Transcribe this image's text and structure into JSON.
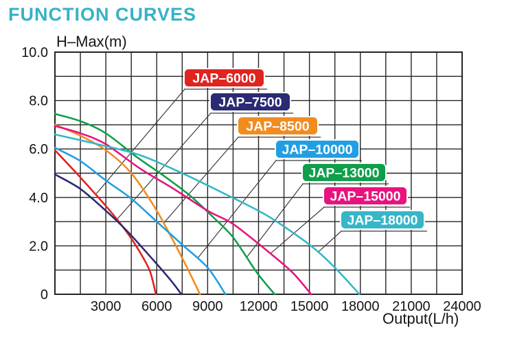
{
  "title": "FUNCTION CURVES",
  "chart_data": {
    "type": "line",
    "title": "FUNCTION CURVES",
    "xlabel": "Output(L/h)",
    "ylabel": "H–Max(m)",
    "xlim": [
      0,
      24000
    ],
    "ylim": [
      0,
      10
    ],
    "grid": true,
    "x_minor_step": 1500,
    "y_minor_step": 1,
    "x_tick_values": [
      3000,
      6000,
      9000,
      12000,
      15000,
      18000,
      21000,
      24000
    ],
    "x_tick_labels": [
      "3000",
      "6000",
      "9000",
      "12000",
      "15000",
      "18000",
      "21000",
      "24000"
    ],
    "y_tick_values": [
      10,
      8,
      6,
      4,
      2,
      0
    ],
    "y_tick_labels": [
      "10.0",
      "8.0",
      "6.0",
      "4.0",
      "2.0",
      "0"
    ],
    "legend_position": "inside-callout-badges",
    "colors": {
      "title": "#35b2c6",
      "grid": "#242424",
      "axis_text": "#141414",
      "badge_text": "#ffffff",
      "callout_line": "#3a3a3a"
    },
    "series": [
      {
        "name": "JAP–6000",
        "color": "#e02420",
        "points": [
          [
            0,
            5.95
          ],
          [
            1400,
            4.9
          ],
          [
            3000,
            3.65
          ],
          [
            4200,
            2.6
          ],
          [
            5000,
            1.75
          ],
          [
            5600,
            0.95
          ],
          [
            5950,
            0
          ]
        ]
      },
      {
        "name": "JAP–7500",
        "color": "#2b2a74",
        "points": [
          [
            0,
            4.95
          ],
          [
            1500,
            4.35
          ],
          [
            3000,
            3.45
          ],
          [
            4200,
            2.65
          ],
          [
            5500,
            1.65
          ],
          [
            6800,
            0.6
          ],
          [
            7450,
            0
          ]
        ]
      },
      {
        "name": "JAP–8500",
        "color": "#f18c20",
        "points": [
          [
            0,
            7.0
          ],
          [
            1500,
            6.55
          ],
          [
            3000,
            5.95
          ],
          [
            4500,
            5.0
          ],
          [
            6000,
            3.45
          ],
          [
            7500,
            1.5
          ],
          [
            8550,
            0
          ]
        ]
      },
      {
        "name": "JAP–10000",
        "color": "#219fe2",
        "points": [
          [
            0,
            6.05
          ],
          [
            1500,
            5.5
          ],
          [
            3000,
            4.7
          ],
          [
            4500,
            3.95
          ],
          [
            6000,
            3.0
          ],
          [
            7500,
            2.05
          ],
          [
            9000,
            1.1
          ],
          [
            10050,
            0
          ]
        ]
      },
      {
        "name": "JAP–13000",
        "color": "#0f9f4a",
        "points": [
          [
            0,
            7.45
          ],
          [
            1500,
            7.15
          ],
          [
            3000,
            6.65
          ],
          [
            4860,
            5.65
          ],
          [
            6500,
            4.85
          ],
          [
            8000,
            4.05
          ],
          [
            9300,
            3.2
          ],
          [
            10500,
            2.35
          ],
          [
            11900,
            0.9
          ],
          [
            12950,
            0
          ]
        ]
      },
      {
        "name": "JAP–15000",
        "color": "#e8137f",
        "points": [
          [
            0,
            6.95
          ],
          [
            1500,
            6.65
          ],
          [
            3000,
            6.2
          ],
          [
            5000,
            5.2
          ],
          [
            7000,
            4.35
          ],
          [
            9000,
            3.45
          ],
          [
            10500,
            2.9
          ],
          [
            12500,
            1.8
          ],
          [
            14000,
            0.9
          ],
          [
            15100,
            0
          ]
        ]
      },
      {
        "name": "JAP–18000",
        "color": "#36b6c8",
        "points": [
          [
            0,
            6.6
          ],
          [
            2500,
            6.2
          ],
          [
            5000,
            5.75
          ],
          [
            7500,
            5.0
          ],
          [
            10000,
            4.15
          ],
          [
            12500,
            3.25
          ],
          [
            15000,
            2.05
          ],
          [
            16500,
            1.1
          ],
          [
            17950,
            0
          ]
        ]
      }
    ]
  }
}
